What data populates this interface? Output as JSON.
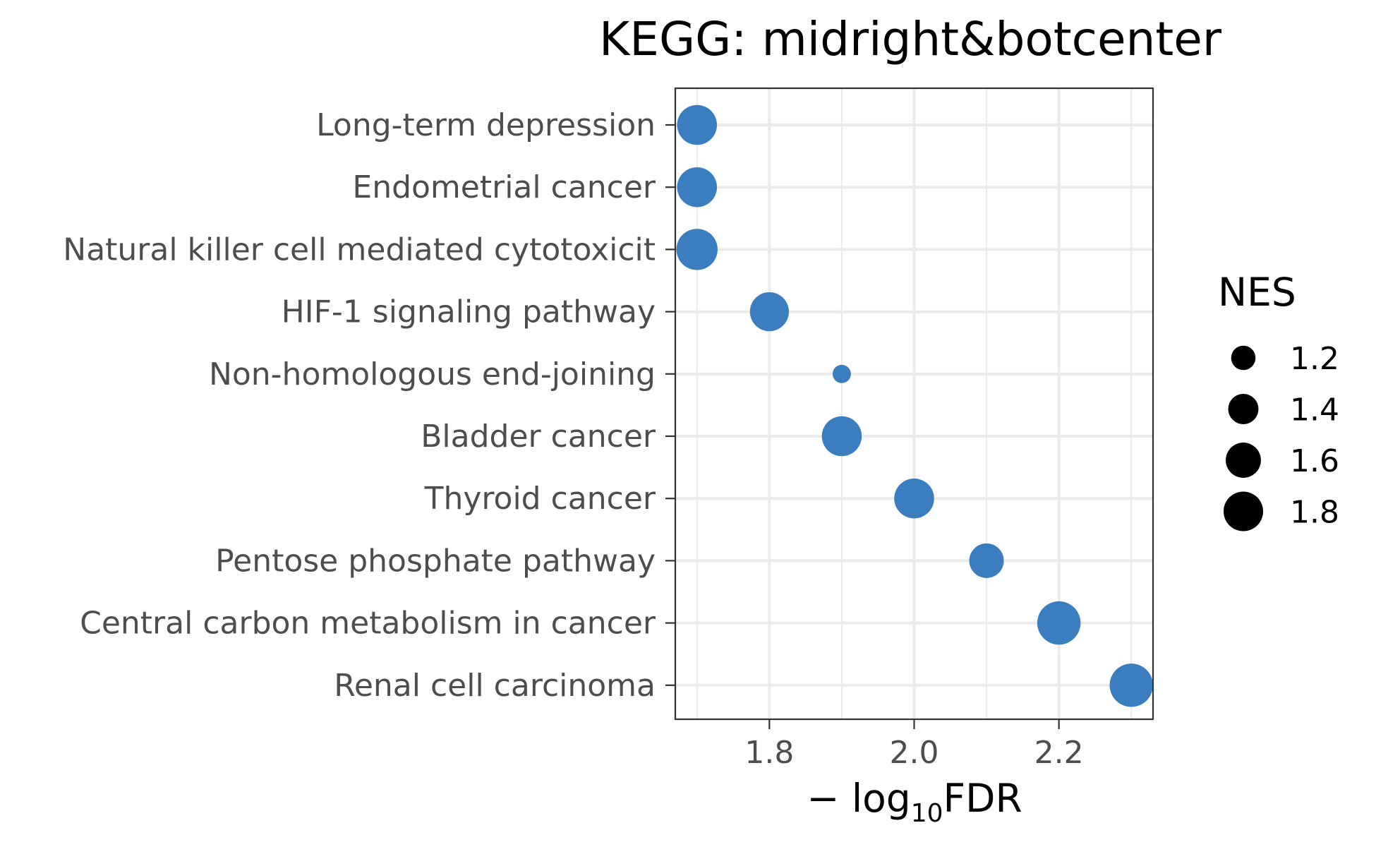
{
  "chart_data": {
    "type": "scatter",
    "title": "KEGG: midright&botcenter",
    "xlabel": {
      "prefix": "− log",
      "subscript": "10",
      "suffix": "FDR"
    },
    "xlim": [
      1.67,
      2.33
    ],
    "xticks": [
      1.8,
      2.0,
      2.2
    ],
    "xtick_labels": [
      "1.8",
      "2.0",
      "2.2"
    ],
    "categories": [
      "Long-term depression",
      "Endometrial cancer",
      "Natural killer cell mediated cytotoxicit",
      "HIF-1 signaling pathway",
      "Non-homologous end-joining",
      "Bladder cancer",
      "Thyroid cancer",
      "Pentose phosphate pathway",
      "Central carbon metabolism in cancer",
      "Renal cell carcinoma"
    ],
    "points": [
      {
        "category": "Long-term depression",
        "x": 1.7,
        "nes": 1.72
      },
      {
        "category": "Endometrial cancer",
        "x": 1.7,
        "nes": 1.72
      },
      {
        "category": "Natural killer cell mediated cytotoxicit",
        "x": 1.7,
        "nes": 1.78
      },
      {
        "category": "HIF-1 signaling pathway",
        "x": 1.8,
        "nes": 1.68
      },
      {
        "category": "Non-homologous end-joining",
        "x": 1.9,
        "nes": 1.02
      },
      {
        "category": "Bladder cancer",
        "x": 1.9,
        "nes": 1.72
      },
      {
        "category": "Thyroid cancer",
        "x": 2.0,
        "nes": 1.72
      },
      {
        "category": "Pentose phosphate pathway",
        "x": 2.1,
        "nes": 1.5
      },
      {
        "category": "Central carbon metabolism in cancer",
        "x": 2.2,
        "nes": 1.88
      },
      {
        "category": "Renal cell carcinoma",
        "x": 2.3,
        "nes": 1.88
      }
    ],
    "point_color": "#3a7ebf",
    "grid": true,
    "legend": {
      "title": "NES",
      "position": "right",
      "items": [
        {
          "value": 1.2,
          "label": "1.2"
        },
        {
          "value": 1.4,
          "label": "1.4"
        },
        {
          "value": 1.6,
          "label": "1.6"
        },
        {
          "value": 1.8,
          "label": "1.8"
        }
      ]
    }
  }
}
